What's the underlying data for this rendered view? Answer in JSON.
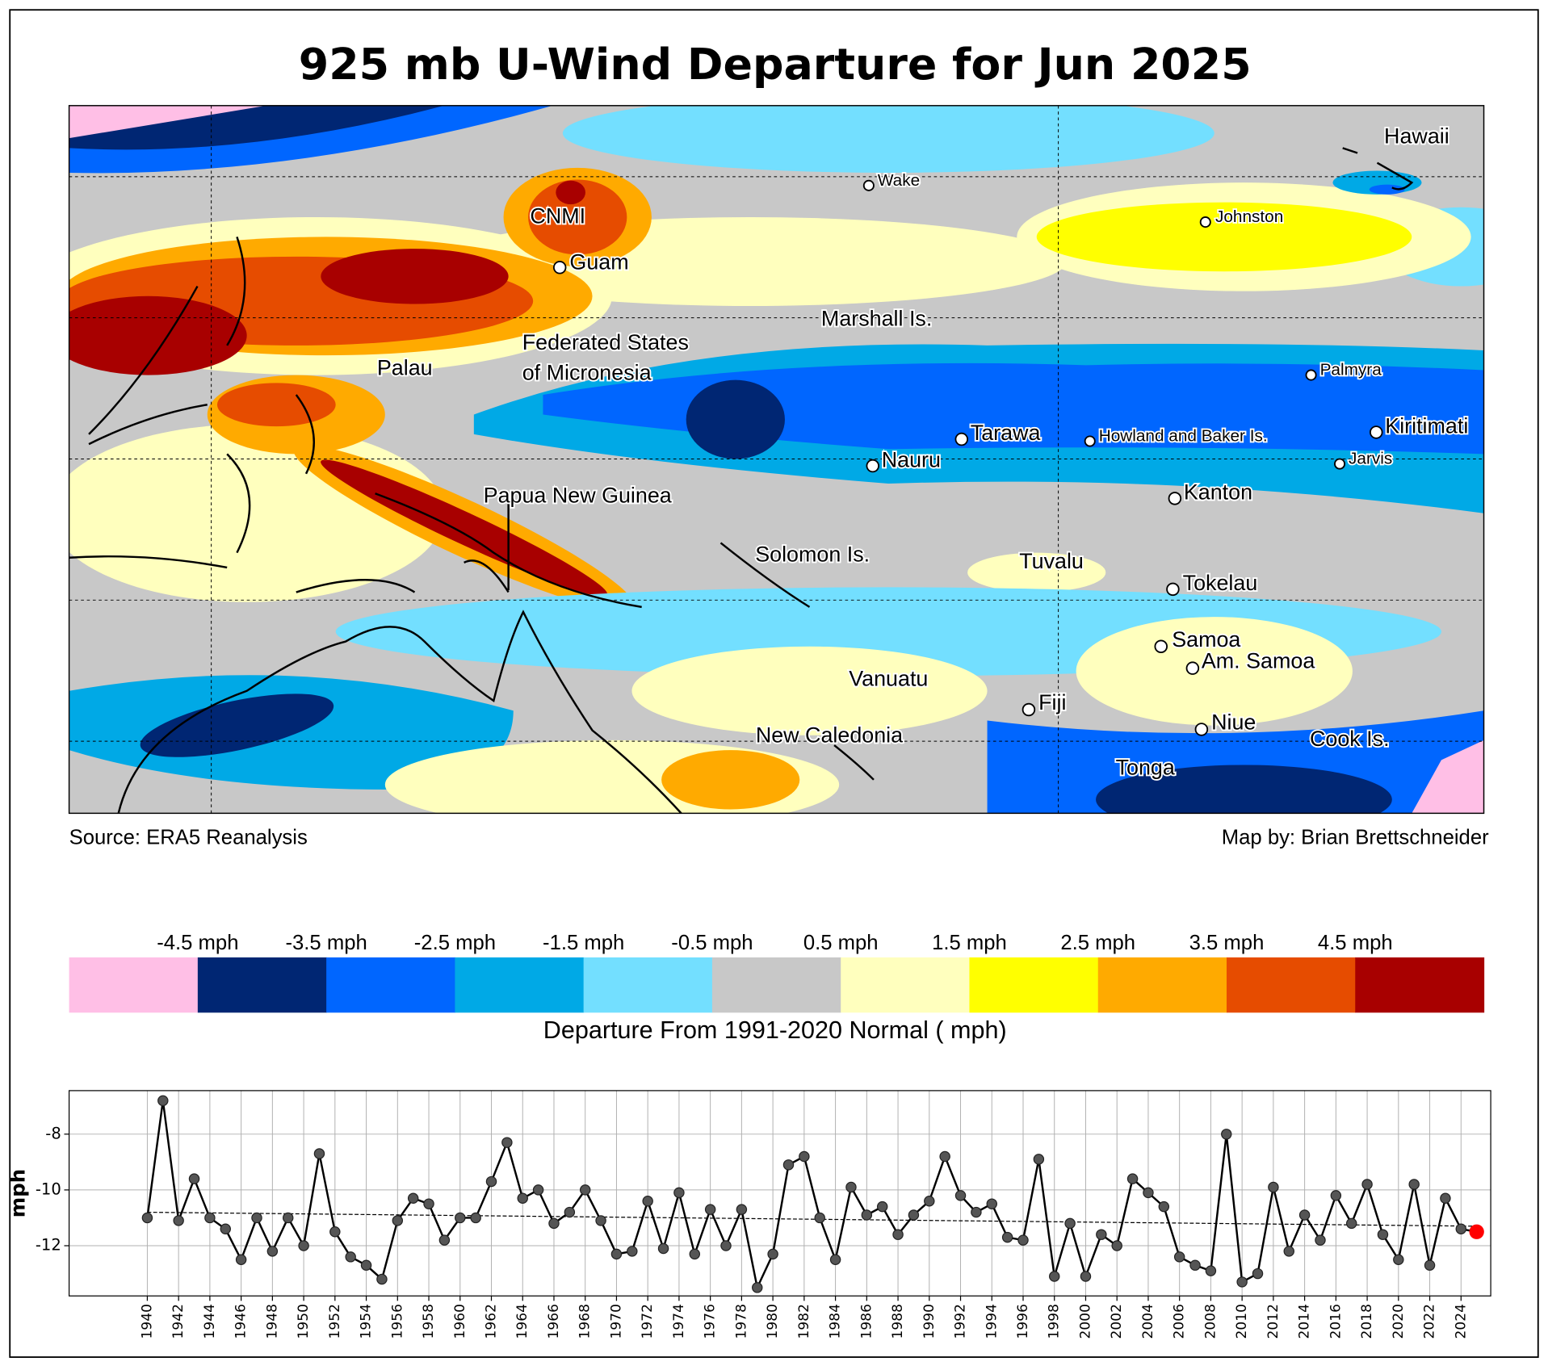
{
  "title": "925 mb U-Wind Departure for Jun 2025",
  "map": {
    "places": [
      "Hawaii",
      "Wake",
      "Johnston",
      "CNMI",
      "Guam",
      "Marshall Is.",
      "Palau",
      "Federated States",
      "of Micronesia",
      "Palmyra",
      "Kiritimati",
      "Tarawa",
      "Howland and Baker Is.",
      "Jarvis",
      "Nauru",
      "Kanton",
      "Papua New Guinea",
      "Solomon Is.",
      "Tuvalu",
      "Tokelau",
      "Samoa",
      "Am. Samoa",
      "Vanuatu",
      "Fiji",
      "Niue",
      "New Caledonia",
      "Cook Is.",
      "Tonga"
    ]
  },
  "source": "Source: ERA5 Reanalysis",
  "credit": "Map by: Brian Brettschneider",
  "colorbar": {
    "title": "Departure From 1991-2020 Normal ( mph)",
    "labels": [
      "-4.5 mph",
      "-3.5 mph",
      "-2.5 mph",
      "-1.5 mph",
      "-0.5 mph",
      "0.5 mph",
      "1.5 mph",
      "2.5 mph",
      "3.5 mph",
      "4.5 mph"
    ],
    "colors": [
      "#ffbfe6",
      "#002673",
      "#0066ff",
      "#00a9e6",
      "#73dfff",
      "#c8c8c8",
      "#ffffbe",
      "#ffff00",
      "#ffaa00",
      "#e64c00",
      "#a80000"
    ]
  },
  "chart_data": {
    "type": "line",
    "ylabel": "mph",
    "color": "#000000",
    "marker_color": "#555555",
    "highlight_color": "#ff0000",
    "grid": true,
    "x": [
      1940,
      1941,
      1942,
      1943,
      1944,
      1945,
      1946,
      1947,
      1948,
      1949,
      1950,
      1951,
      1952,
      1953,
      1954,
      1955,
      1956,
      1957,
      1958,
      1959,
      1960,
      1961,
      1962,
      1963,
      1964,
      1965,
      1966,
      1967,
      1968,
      1969,
      1970,
      1971,
      1972,
      1973,
      1974,
      1975,
      1976,
      1977,
      1978,
      1979,
      1980,
      1981,
      1982,
      1983,
      1984,
      1985,
      1986,
      1987,
      1988,
      1989,
      1990,
      1991,
      1992,
      1993,
      1994,
      1995,
      1996,
      1997,
      1998,
      1999,
      2000,
      2001,
      2002,
      2003,
      2004,
      2005,
      2006,
      2007,
      2008,
      2009,
      2010,
      2011,
      2012,
      2013,
      2014,
      2015,
      2016,
      2017,
      2018,
      2019,
      2020,
      2021,
      2022,
      2023,
      2024,
      2025
    ],
    "values": [
      -11.0,
      -6.8,
      -11.1,
      -9.6,
      -11.0,
      -11.4,
      -12.5,
      -11.0,
      -12.2,
      -11.0,
      -12.0,
      -8.7,
      -11.5,
      -12.4,
      -12.7,
      -13.2,
      -11.1,
      -10.3,
      -10.5,
      -11.8,
      -11.0,
      -11.0,
      -9.7,
      -8.3,
      -10.3,
      -10.0,
      -11.2,
      -10.8,
      -10.0,
      -11.1,
      -12.3,
      -12.2,
      -10.4,
      -12.1,
      -10.1,
      -12.3,
      -10.7,
      -12.0,
      -10.7,
      -13.5,
      -12.3,
      -9.1,
      -8.8,
      -11.0,
      -12.5,
      -9.9,
      -10.9,
      -10.6,
      -11.6,
      -10.9,
      -10.4,
      -8.8,
      -10.2,
      -10.8,
      -10.5,
      -11.7,
      -11.8,
      -8.9,
      -13.1,
      -11.2,
      -13.1,
      -11.6,
      -12.0,
      -9.6,
      -10.1,
      -10.6,
      -12.4,
      -12.7,
      -12.9,
      -8.0,
      -13.3,
      -13.0,
      -9.9,
      -12.2,
      -10.9,
      -11.8,
      -10.2,
      -11.2,
      -9.8,
      -11.6,
      -12.5,
      -9.8,
      -12.7,
      -10.3,
      -11.4,
      -11.5
    ],
    "trend": {
      "x": [
        1940,
        2025
      ],
      "values": [
        -10.8,
        -11.3
      ]
    },
    "xlim": [
      1935.0,
      2025.9
    ],
    "ylim": [
      -13.8,
      -6.44
    ],
    "xticks": [
      1940,
      1942,
      1944,
      1946,
      1948,
      1950,
      1952,
      1954,
      1956,
      1958,
      1960,
      1962,
      1964,
      1966,
      1968,
      1970,
      1972,
      1974,
      1976,
      1978,
      1980,
      1982,
      1984,
      1986,
      1988,
      1990,
      1992,
      1994,
      1996,
      1998,
      2000,
      2002,
      2004,
      2006,
      2008,
      2010,
      2012,
      2014,
      2016,
      2018,
      2020,
      2022,
      2024
    ],
    "yticks": [
      -8,
      -10,
      -12
    ]
  }
}
